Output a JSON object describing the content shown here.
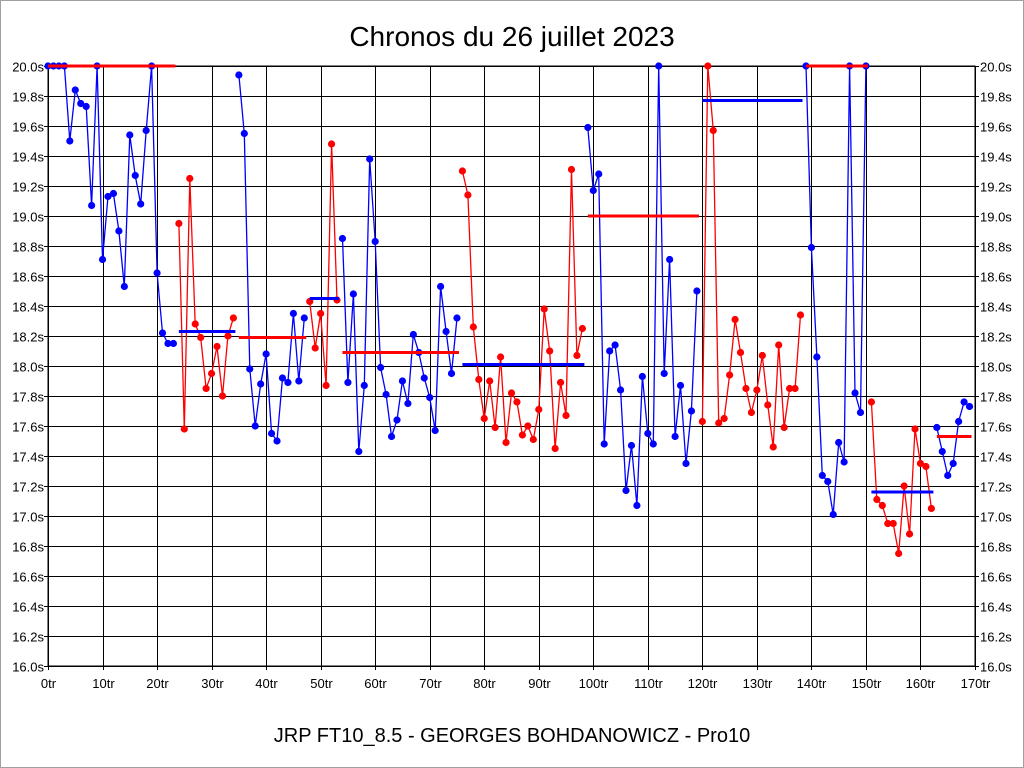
{
  "chart_data": {
    "type": "line",
    "title": "Chronos du 26 juillet 2023",
    "footer": "JRP FT10_8.5 - GEORGES BOHDANOWICZ - Pro10",
    "xlabel": "",
    "ylabel": "",
    "xlim": [
      0,
      170
    ],
    "ylim": [
      16.0,
      20.0
    ],
    "x_tick_step": 10,
    "y_tick_step": 0.2,
    "x_tick_suffix": "tr",
    "y_tick_suffix": "s",
    "grid": true,
    "colors": {
      "blue": "#0000ff",
      "red": "#ff0000"
    },
    "segments": [
      {
        "color": "blue",
        "avg_color": "red",
        "start": 0,
        "average": 20.0,
        "values": [
          20.0,
          20.0,
          20.0,
          20.0,
          19.5,
          19.84,
          19.75,
          19.73,
          19.07,
          20.0,
          18.71,
          19.13,
          19.15,
          18.9,
          18.53,
          19.54,
          19.27,
          19.08,
          19.57,
          20.0,
          18.62,
          18.22,
          18.15,
          18.15
        ]
      },
      {
        "color": "red",
        "avg_color": "blue",
        "start": 24,
        "average": 18.23,
        "values": [
          18.95,
          17.58,
          19.25,
          18.28,
          18.19,
          17.85,
          17.95,
          18.13,
          17.8,
          18.2,
          18.32
        ]
      },
      {
        "color": "blue",
        "avg_color": "red",
        "start": 35,
        "average": 18.19,
        "values": [
          19.94,
          19.55,
          17.98,
          17.6,
          17.88,
          18.08,
          17.55,
          17.5,
          17.92,
          17.89,
          18.35,
          17.9,
          18.32
        ]
      },
      {
        "color": "red",
        "avg_color": "blue",
        "start": 48,
        "average": 18.45,
        "values": [
          18.43,
          18.12,
          18.35,
          17.87,
          19.48,
          18.44
        ]
      },
      {
        "color": "blue",
        "avg_color": "red",
        "start": 54,
        "average": 18.09,
        "values": [
          18.85,
          17.89,
          18.48,
          17.43,
          17.87,
          19.38,
          18.83,
          17.99,
          17.81,
          17.53,
          17.64,
          17.9,
          17.75,
          18.21,
          18.09,
          17.92,
          17.79,
          17.57,
          18.53,
          18.23,
          17.95,
          18.32
        ]
      },
      {
        "color": "red",
        "avg_color": "blue",
        "start": 76,
        "average": 18.01,
        "values": [
          19.3,
          19.14,
          18.26,
          17.91,
          17.65,
          17.9,
          17.59,
          18.06,
          17.49,
          17.82,
          17.76,
          17.54,
          17.6,
          17.51,
          17.71,
          18.38,
          18.1,
          17.45,
          17.89,
          17.67,
          19.31,
          18.07,
          18.25
        ]
      },
      {
        "color": "blue",
        "avg_color": "red",
        "start": 99,
        "average": 19.0,
        "values": [
          19.59,
          19.17,
          19.28,
          17.48,
          18.1,
          18.14,
          17.84,
          17.17,
          17.47,
          17.07,
          17.93,
          17.55,
          17.48,
          20.0,
          17.95,
          18.71,
          17.53,
          17.87,
          17.35,
          17.7,
          18.5
        ]
      },
      {
        "color": "red",
        "avg_color": "blue",
        "start": 120,
        "average": 19.77,
        "values": [
          17.63,
          20.0,
          19.57,
          17.62,
          17.65,
          17.94,
          18.31,
          18.09,
          17.85,
          17.69,
          17.84,
          18.07,
          17.74,
          17.46,
          18.14,
          17.59,
          17.85,
          17.85,
          18.34
        ]
      },
      {
        "color": "blue",
        "avg_color": "red",
        "start": 139,
        "average": 20.0,
        "values": [
          20.0,
          18.79,
          18.06,
          17.27,
          17.23,
          17.01,
          17.49,
          17.36,
          20.0,
          17.82,
          17.69,
          20.0
        ]
      },
      {
        "color": "red",
        "avg_color": "blue",
        "start": 151,
        "average": 17.16,
        "values": [
          17.76,
          17.11,
          17.07,
          16.95,
          16.95,
          16.75,
          17.2,
          16.88,
          17.58,
          17.35,
          17.33,
          17.05
        ]
      },
      {
        "color": "blue",
        "avg_color": "red",
        "start": 163,
        "average": 17.53,
        "values": [
          17.59,
          17.43,
          17.27,
          17.35,
          17.63,
          17.76,
          17.73
        ]
      }
    ]
  }
}
